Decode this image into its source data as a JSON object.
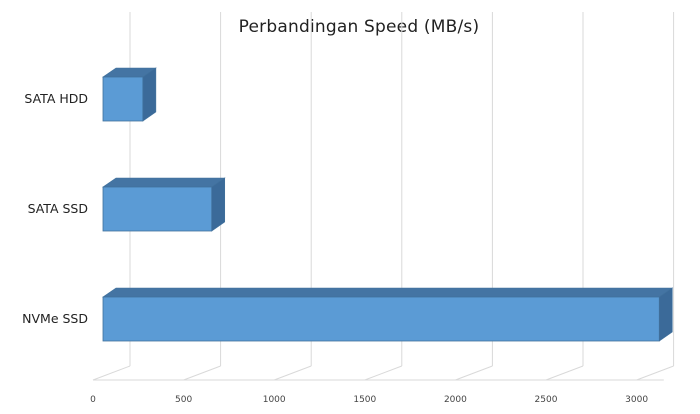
{
  "chart_data": {
    "type": "bar",
    "orientation": "horizontal",
    "three_d": true,
    "title": "Perbandingan Speed (MB/s)",
    "categories": [
      "SATA HDD",
      "SATA SSD",
      "NVMe SSD"
    ],
    "values": [
      220,
      600,
      3070
    ],
    "x_ticks": [
      0,
      500,
      1000,
      1500,
      2000,
      2500,
      3000
    ],
    "xlim": [
      0,
      3000
    ],
    "grid": true,
    "legend": "none",
    "colors": {
      "front": "#5b9bd5",
      "top": "#4474a3",
      "side": "#3b6a99",
      "edge": "#41719c"
    }
  }
}
